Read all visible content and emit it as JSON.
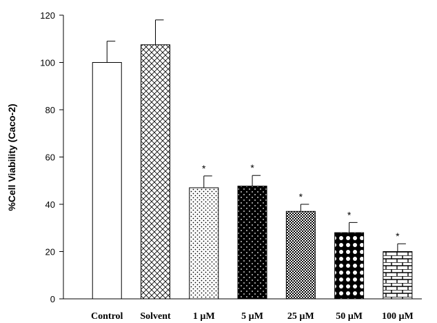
{
  "chart_data": {
    "type": "bar",
    "title": "",
    "xlabel": "",
    "ylabel": "%Cell Viability (Caco-2)",
    "ylim": [
      0,
      120
    ],
    "yticks": [
      0,
      20,
      40,
      60,
      80,
      100,
      120
    ],
    "grid": false,
    "categories": [
      "Control",
      "Solvent",
      "1 µM",
      "5 µM",
      "25 µM",
      "50 µM",
      "100 µM"
    ],
    "values": [
      100,
      107.5,
      47,
      47.7,
      37,
      28,
      20
    ],
    "error_plus": [
      9,
      10.5,
      5,
      4.5,
      3,
      4.3,
      3.3
    ],
    "significance": [
      "",
      "",
      "*",
      "*",
      "*",
      "*",
      "*"
    ],
    "patterns": [
      "solid-white",
      "crosshatch",
      "sparse-dots",
      "dots-on-black",
      "fine-checker",
      "circles-on-black",
      "brick"
    ]
  }
}
